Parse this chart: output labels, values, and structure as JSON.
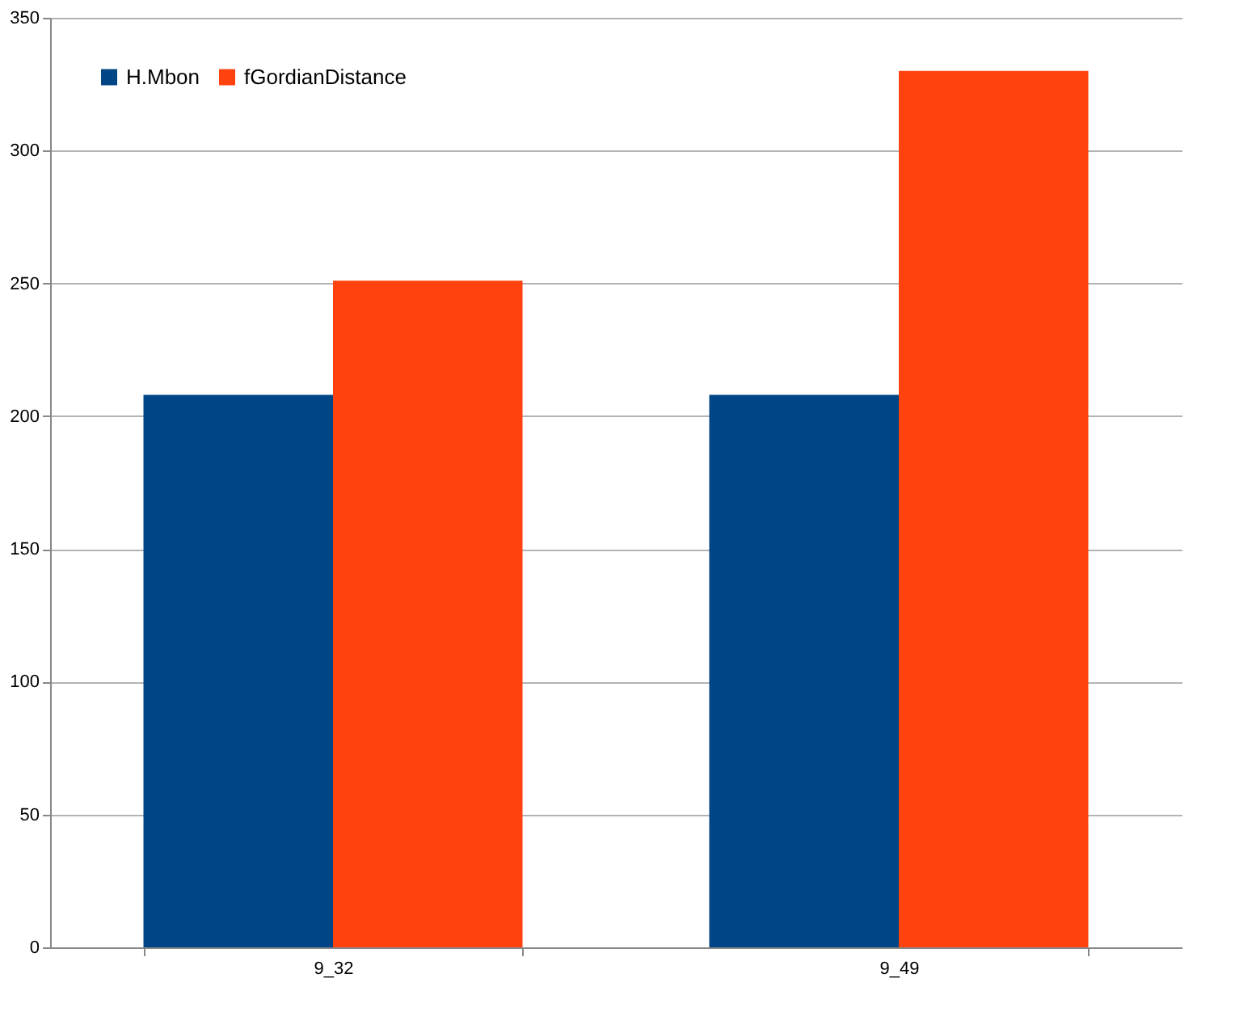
{
  "chart_data": {
    "type": "bar",
    "categories": [
      "9_32",
      "9_49"
    ],
    "series": [
      {
        "name": "H.Mbon",
        "color": "#004586",
        "values": [
          208,
          208
        ]
      },
      {
        "name": "fGordianDistance",
        "color": "#ff420e",
        "values": [
          251,
          330
        ]
      }
    ],
    "ylim": [
      0,
      350
    ],
    "yticks": [
      0,
      50,
      100,
      150,
      200,
      250,
      300,
      350
    ],
    "grid": "y",
    "legend": "top left"
  }
}
